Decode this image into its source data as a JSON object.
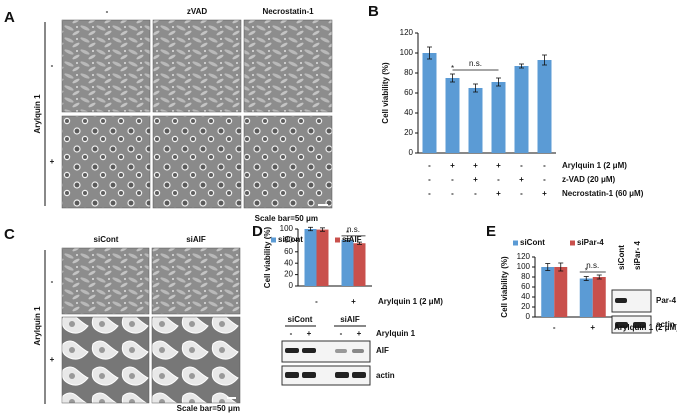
{
  "panels": {
    "A": {
      "label": "A",
      "columns": [
        "-",
        "zVAD",
        "Necrostatin-1"
      ],
      "rows": [
        "-",
        "+"
      ],
      "treatment": "Arylquin 1",
      "scale_bar": "Scale bar=50 μm"
    },
    "C": {
      "label": "C",
      "columns": [
        "siCont",
        "siAIF"
      ],
      "rows": [
        "-",
        "+"
      ],
      "treatment": "Arylquin 1",
      "scale_bar": "Scale bar=50 μm"
    },
    "D_blot": {
      "columns": [
        "siCont",
        "siAIF"
      ],
      "treatment_signs": [
        "-",
        "+",
        "-",
        "+"
      ],
      "treatment": "Arylquin 1",
      "bands": [
        "AIF",
        "actin"
      ]
    },
    "E_blot": {
      "columns": [
        "siCont",
        "siPar- 4"
      ],
      "bands": [
        "Par-4",
        "actin"
      ]
    }
  },
  "chart_data": [
    {
      "type": "bar",
      "panel": "B",
      "ylabel": "Cell viability (%)",
      "ylim": [
        0,
        120
      ],
      "yticks": [
        0,
        20,
        40,
        60,
        80,
        100,
        120
      ],
      "values": [
        100,
        75,
        65,
        71,
        87,
        93
      ],
      "errors": [
        6,
        4,
        4,
        4,
        2,
        5
      ],
      "color": "#5b9bd5",
      "conditions": [
        {
          "label": "Arylquin  1 (2 μM)",
          "signs": [
            "-",
            "+",
            "+",
            "+",
            "-",
            "-"
          ]
        },
        {
          "label": "z-VAD  (20 μM)",
          "signs": [
            "-",
            "-",
            "+",
            "-",
            "+",
            "-"
          ]
        },
        {
          "label": "Necrostatin-1 (60 μM)",
          "signs": [
            "-",
            "-",
            "-",
            "+",
            "-",
            "+"
          ]
        }
      ],
      "annotations": [
        {
          "text": "*",
          "category": 1,
          "series": 0
        },
        {
          "text": "n.s.",
          "from": 1,
          "to": 3,
          "value": 83
        }
      ]
    },
    {
      "type": "bar",
      "panel": "D",
      "ylabel": "Cell viability (%)",
      "ylim": [
        0,
        100
      ],
      "yticks": [
        0,
        20,
        40,
        60,
        80,
        100
      ],
      "categories": [
        "-",
        "+"
      ],
      "xlabel": "Arylquin 1  (2 μM)",
      "series": [
        {
          "name": "siCont",
          "color": "#5b9bd5",
          "values": [
            100,
            81
          ],
          "errors": [
            3,
            2
          ]
        },
        {
          "name": "siAIF",
          "color": "#c9504c",
          "values": [
            99,
            75
          ],
          "errors": [
            3,
            2
          ]
        }
      ],
      "annotations": [
        {
          "text": "*",
          "category": 1,
          "series": 0
        },
        {
          "text": "n.s.",
          "from": 1,
          "to": 1,
          "value": 88
        }
      ]
    },
    {
      "type": "bar",
      "panel": "E",
      "ylabel": "Cell viability (%)",
      "ylim": [
        0,
        120
      ],
      "yticks": [
        0,
        20,
        40,
        60,
        80,
        100,
        120
      ],
      "categories": [
        "-",
        "+"
      ],
      "xlabel": "Arylquin 1  (2 μM)",
      "series": [
        {
          "name": "siCont",
          "color": "#5b9bd5",
          "values": [
            100,
            77
          ],
          "errors": [
            7,
            4
          ]
        },
        {
          "name": "siPar-4",
          "color": "#c9504c",
          "values": [
            100,
            80
          ],
          "errors": [
            8,
            4
          ]
        }
      ],
      "annotations": [
        {
          "text": "*",
          "category": 1,
          "series": 0
        },
        {
          "text": "n.s.",
          "from": 1,
          "to": 1,
          "value": 90
        }
      ]
    }
  ]
}
